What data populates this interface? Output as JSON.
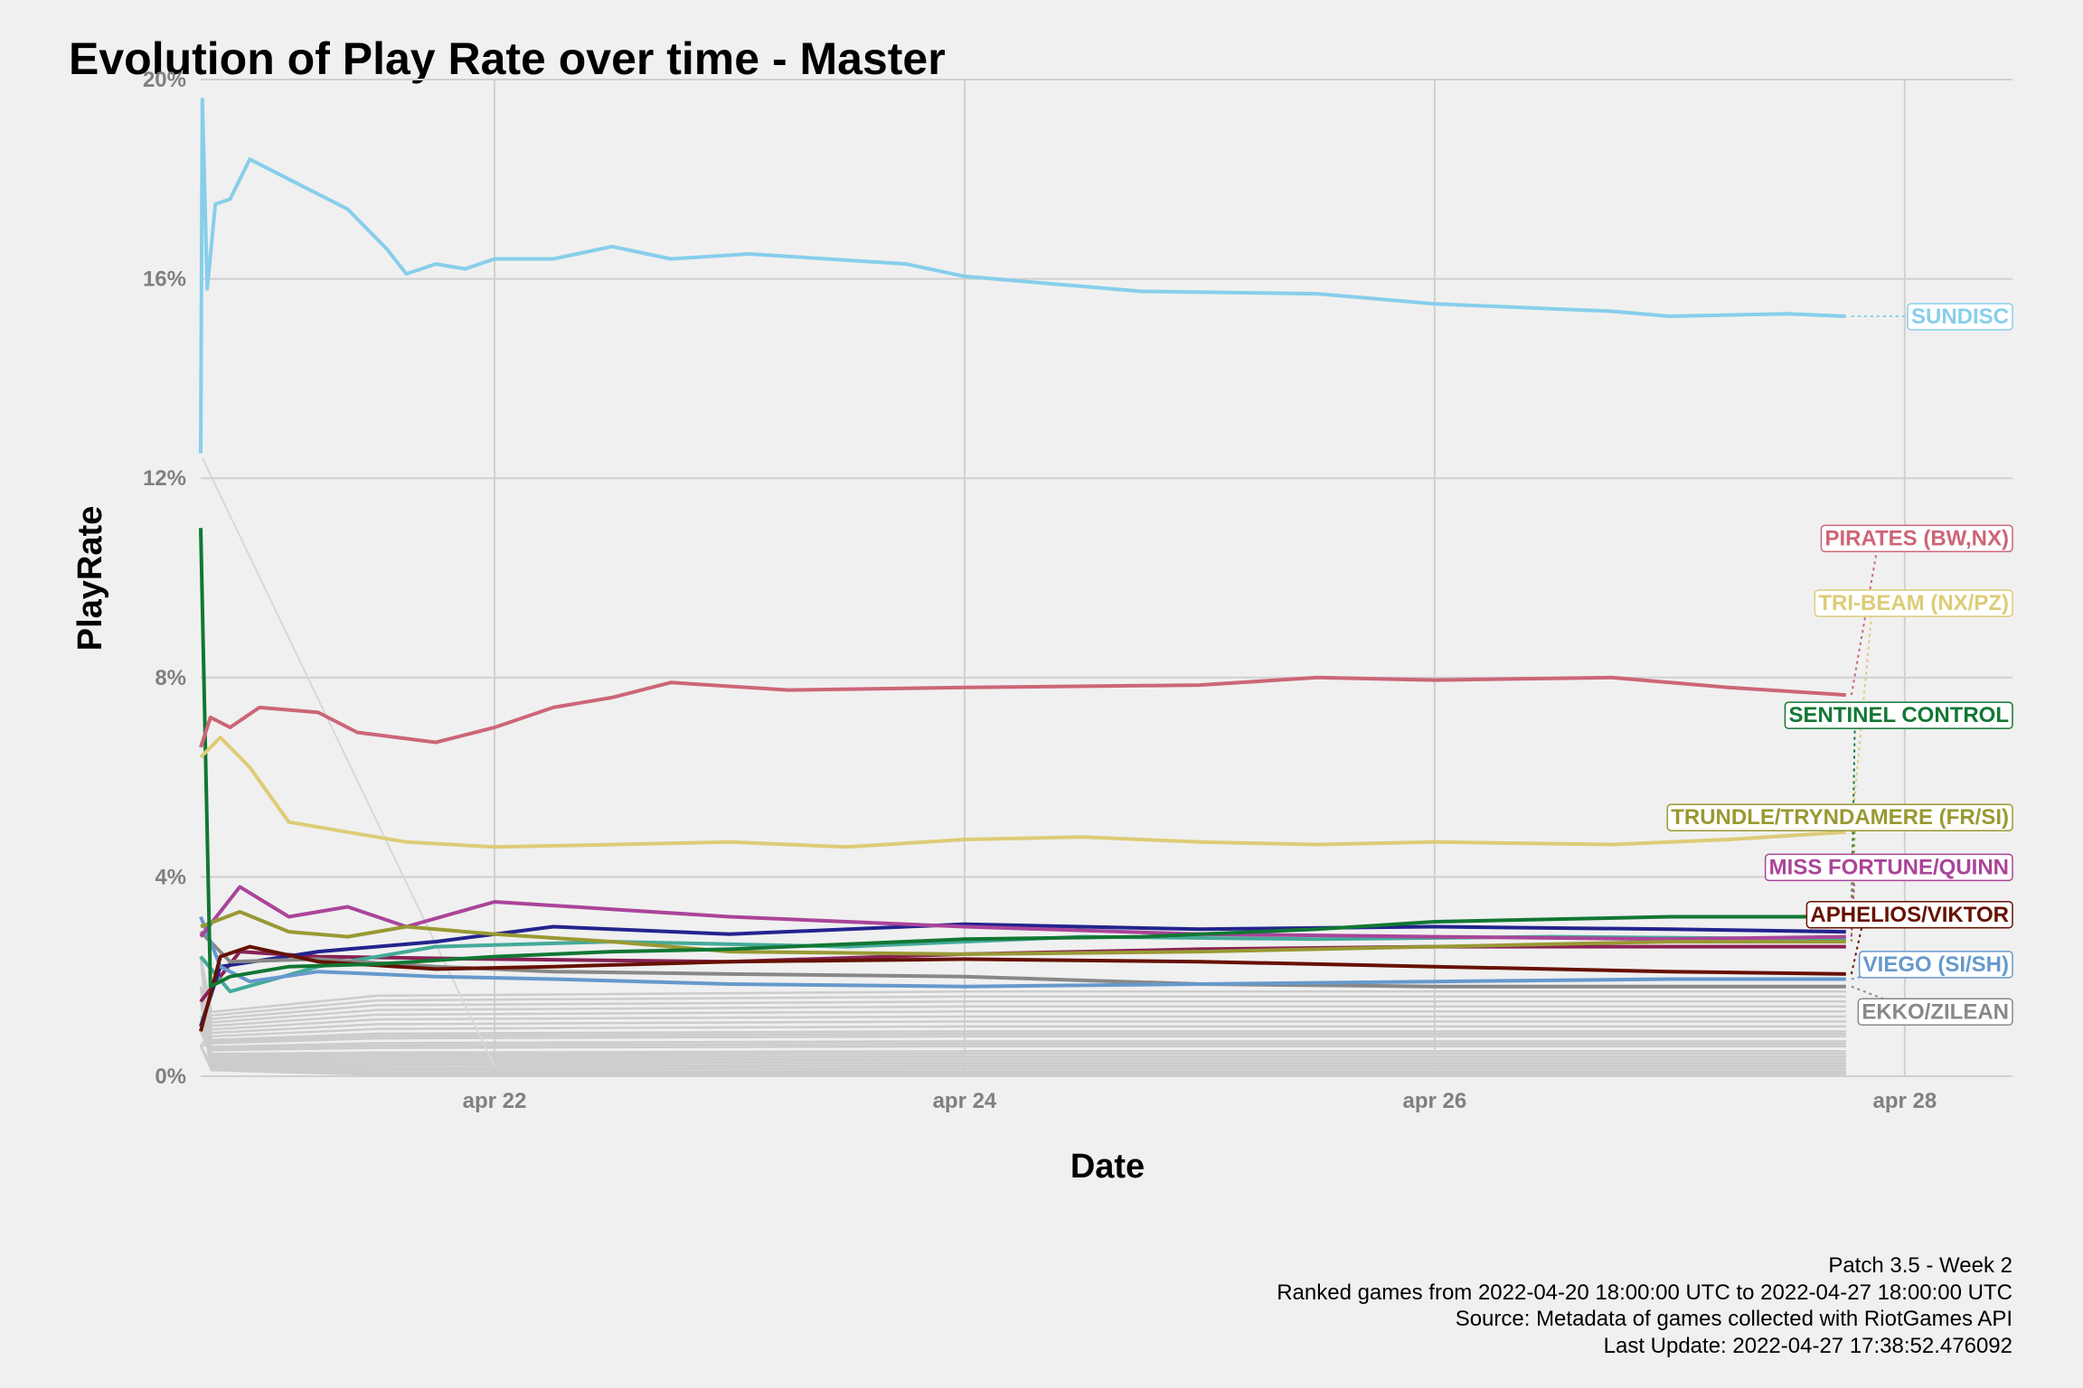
{
  "chart_data": {
    "type": "line",
    "title": "Evolution of Play Rate over time - Master",
    "xlabel": "Date",
    "ylabel": "PlayRate",
    "x_axis": {
      "range": [
        "2022-04-20T18:00",
        "2022-04-28T11:00"
      ],
      "ticks": [
        {
          "value": "2022-04-22",
          "label": "apr 22"
        },
        {
          "value": "2022-04-24",
          "label": "apr 24"
        },
        {
          "value": "2022-04-26",
          "label": "apr 26"
        },
        {
          "value": "2022-04-28",
          "label": "apr 28"
        }
      ]
    },
    "y_axis": {
      "range": [
        0,
        20
      ],
      "unit": "%",
      "ticks": [
        {
          "value": 0,
          "label": "0%"
        },
        {
          "value": 4,
          "label": "4%"
        },
        {
          "value": 8,
          "label": "8%"
        },
        {
          "value": 12,
          "label": "12%"
        },
        {
          "value": 16,
          "label": "16%"
        },
        {
          "value": 20,
          "label": "20%"
        }
      ]
    },
    "grid": true,
    "legend": "direct labels at right end of lines",
    "series": [
      {
        "name": "SUNDISC",
        "color": "#87ceeb",
        "points": [
          [
            "2022-04-20T18:00",
            12.5
          ],
          [
            "2022-04-20T18:10",
            19.6
          ],
          [
            "2022-04-20T18:40",
            15.8
          ],
          [
            "2022-04-20T19:30",
            17.5
          ],
          [
            "2022-04-20T21:00",
            17.6
          ],
          [
            "2022-04-20T23:00",
            18.4
          ],
          [
            "2022-04-21T03:00",
            18.0
          ],
          [
            "2022-04-21T09:00",
            17.4
          ],
          [
            "2022-04-21T13:00",
            16.6
          ],
          [
            "2022-04-21T15:00",
            16.1
          ],
          [
            "2022-04-21T18:00",
            16.3
          ],
          [
            "2022-04-21T21:00",
            16.2
          ],
          [
            "2022-04-22T00:00",
            16.4
          ],
          [
            "2022-04-22T06:00",
            16.4
          ],
          [
            "2022-04-22T12:00",
            16.65
          ],
          [
            "2022-04-22T18:00",
            16.4
          ],
          [
            "2022-04-23T02:00",
            16.5
          ],
          [
            "2022-04-23T10:00",
            16.4
          ],
          [
            "2022-04-23T18:00",
            16.3
          ],
          [
            "2022-04-24T00:00",
            16.05
          ],
          [
            "2022-04-24T06:00",
            15.95
          ],
          [
            "2022-04-24T12:00",
            15.85
          ],
          [
            "2022-04-24T18:00",
            15.75
          ],
          [
            "2022-04-25T12:00",
            15.7
          ],
          [
            "2022-04-26T00:00",
            15.5
          ],
          [
            "2022-04-26T12:00",
            15.4
          ],
          [
            "2022-04-26T18:00",
            15.35
          ],
          [
            "2022-04-27T00:00",
            15.25
          ],
          [
            "2022-04-27T12:00",
            15.3
          ],
          [
            "2022-04-27T18:00",
            15.25
          ]
        ]
      },
      {
        "name": "PIRATES (BW,NX)",
        "color": "#cc6677",
        "points": [
          [
            "2022-04-20T18:00",
            6.6
          ],
          [
            "2022-04-20T19:00",
            7.2
          ],
          [
            "2022-04-20T21:00",
            7.0
          ],
          [
            "2022-04-21T00:00",
            7.4
          ],
          [
            "2022-04-21T06:00",
            7.3
          ],
          [
            "2022-04-21T10:00",
            6.9
          ],
          [
            "2022-04-21T18:00",
            6.7
          ],
          [
            "2022-04-22T00:00",
            7.0
          ],
          [
            "2022-04-22T06:00",
            7.4
          ],
          [
            "2022-04-22T12:00",
            7.6
          ],
          [
            "2022-04-22T18:00",
            7.9
          ],
          [
            "2022-04-23T06:00",
            7.75
          ],
          [
            "2022-04-24T00:00",
            7.8
          ],
          [
            "2022-04-25T00:00",
            7.85
          ],
          [
            "2022-04-25T12:00",
            8.0
          ],
          [
            "2022-04-26T00:00",
            7.95
          ],
          [
            "2022-04-26T18:00",
            8.0
          ],
          [
            "2022-04-27T06:00",
            7.8
          ],
          [
            "2022-04-27T18:00",
            7.65
          ]
        ]
      },
      {
        "name": "TRI-BEAM (NX/PZ)",
        "color": "#ddcc77",
        "points": [
          [
            "2022-04-20T18:00",
            6.4
          ],
          [
            "2022-04-20T20:00",
            6.8
          ],
          [
            "2022-04-20T23:00",
            6.2
          ],
          [
            "2022-04-21T03:00",
            5.1
          ],
          [
            "2022-04-21T09:00",
            4.9
          ],
          [
            "2022-04-21T15:00",
            4.7
          ],
          [
            "2022-04-22T00:00",
            4.6
          ],
          [
            "2022-04-22T12:00",
            4.65
          ],
          [
            "2022-04-23T00:00",
            4.7
          ],
          [
            "2022-04-23T12:00",
            4.6
          ],
          [
            "2022-04-24T00:00",
            4.75
          ],
          [
            "2022-04-24T12:00",
            4.8
          ],
          [
            "2022-04-25T00:00",
            4.7
          ],
          [
            "2022-04-25T12:00",
            4.65
          ],
          [
            "2022-04-26T00:00",
            4.7
          ],
          [
            "2022-04-26T18:00",
            4.65
          ],
          [
            "2022-04-27T06:00",
            4.75
          ],
          [
            "2022-04-27T18:00",
            4.9
          ]
        ]
      },
      {
        "name": "SENTINEL CONTROL",
        "color": "#117733",
        "points": [
          [
            "2022-04-20T18:00",
            11.0
          ],
          [
            "2022-04-20T19:00",
            1.8
          ],
          [
            "2022-04-20T21:00",
            2.0
          ],
          [
            "2022-04-21T03:00",
            2.2
          ],
          [
            "2022-04-21T12:00",
            2.25
          ],
          [
            "2022-04-22T00:00",
            2.4
          ],
          [
            "2022-04-22T12:00",
            2.5
          ],
          [
            "2022-04-23T00:00",
            2.55
          ],
          [
            "2022-04-24T00:00",
            2.75
          ],
          [
            "2022-04-24T18:00",
            2.8
          ],
          [
            "2022-04-25T12:00",
            2.95
          ],
          [
            "2022-04-26T00:00",
            3.1
          ],
          [
            "2022-04-26T12:00",
            3.15
          ],
          [
            "2022-04-27T00:00",
            3.2
          ],
          [
            "2022-04-27T18:00",
            3.2
          ]
        ]
      },
      {
        "name": "TRUNDLE/TRYNDAMERE (FR/SI)",
        "color": "#999933",
        "points": [
          [
            "2022-04-20T18:00",
            3.0
          ],
          [
            "2022-04-20T22:00",
            3.3
          ],
          [
            "2022-04-21T03:00",
            2.9
          ],
          [
            "2022-04-21T09:00",
            2.8
          ],
          [
            "2022-04-21T15:00",
            3.0
          ],
          [
            "2022-04-22T00:00",
            2.85
          ],
          [
            "2022-04-22T12:00",
            2.7
          ],
          [
            "2022-04-23T00:00",
            2.5
          ],
          [
            "2022-04-24T00:00",
            2.45
          ],
          [
            "2022-04-25T00:00",
            2.5
          ],
          [
            "2022-04-26T00:00",
            2.6
          ],
          [
            "2022-04-27T00:00",
            2.7
          ],
          [
            "2022-04-27T18:00",
            2.7
          ]
        ]
      },
      {
        "name": "MISS FORTUNE/QUINN",
        "color": "#aa4499",
        "points": [
          [
            "2022-04-20T18:00",
            2.8
          ],
          [
            "2022-04-20T22:00",
            3.8
          ],
          [
            "2022-04-21T03:00",
            3.2
          ],
          [
            "2022-04-21T09:00",
            3.4
          ],
          [
            "2022-04-21T15:00",
            3.0
          ],
          [
            "2022-04-22T00:00",
            3.5
          ],
          [
            "2022-04-22T12:00",
            3.35
          ],
          [
            "2022-04-23T00:00",
            3.2
          ],
          [
            "2022-04-24T00:00",
            3.0
          ],
          [
            "2022-04-25T00:00",
            2.85
          ],
          [
            "2022-04-26T00:00",
            2.8
          ],
          [
            "2022-04-27T00:00",
            2.75
          ],
          [
            "2022-04-27T18:00",
            2.8
          ]
        ]
      },
      {
        "name": "APHELIOS/VIKTOR",
        "color": "#661100",
        "points": [
          [
            "2022-04-20T18:00",
            0.9
          ],
          [
            "2022-04-20T20:00",
            2.4
          ],
          [
            "2022-04-20T23:00",
            2.6
          ],
          [
            "2022-04-21T06:00",
            2.3
          ],
          [
            "2022-04-21T18:00",
            2.15
          ],
          [
            "2022-04-22T06:00",
            2.2
          ],
          [
            "2022-04-23T00:00",
            2.3
          ],
          [
            "2022-04-24T00:00",
            2.35
          ],
          [
            "2022-04-25T00:00",
            2.3
          ],
          [
            "2022-04-26T00:00",
            2.2
          ],
          [
            "2022-04-27T00:00",
            2.1
          ],
          [
            "2022-04-27T18:00",
            2.05
          ]
        ]
      },
      {
        "name": "VIEGO (SI/SH)",
        "color": "#6699cc",
        "points": [
          [
            "2022-04-20T18:00",
            3.2
          ],
          [
            "2022-04-20T20:00",
            2.2
          ],
          [
            "2022-04-20T23:00",
            1.9
          ],
          [
            "2022-04-21T06:00",
            2.1
          ],
          [
            "2022-04-21T18:00",
            2.0
          ],
          [
            "2022-04-22T06:00",
            1.95
          ],
          [
            "2022-04-23T00:00",
            1.85
          ],
          [
            "2022-04-24T00:00",
            1.8
          ],
          [
            "2022-04-25T00:00",
            1.85
          ],
          [
            "2022-04-26T00:00",
            1.9
          ],
          [
            "2022-04-27T00:00",
            1.95
          ],
          [
            "2022-04-27T18:00",
            1.95
          ]
        ]
      },
      {
        "name": "EKKO/ZILEAN",
        "color": "#888888",
        "points": [
          [
            "2022-04-20T18:00",
            2.9
          ],
          [
            "2022-04-20T21:00",
            2.3
          ],
          [
            "2022-04-21T06:00",
            2.35
          ],
          [
            "2022-04-21T18:00",
            2.2
          ],
          [
            "2022-04-22T06:00",
            2.1
          ],
          [
            "2022-04-23T00:00",
            2.05
          ],
          [
            "2022-04-24T00:00",
            2.0
          ],
          [
            "2022-04-25T00:00",
            1.85
          ],
          [
            "2022-04-26T00:00",
            1.8
          ],
          [
            "2022-04-27T00:00",
            1.8
          ],
          [
            "2022-04-27T18:00",
            1.8
          ]
        ]
      },
      {
        "color": "#23238e",
        "points": [
          [
            "2022-04-20T18:00",
            1.0
          ],
          [
            "2022-04-20T20:00",
            2.2
          ],
          [
            "2022-04-21T06:00",
            2.5
          ],
          [
            "2022-04-21T18:00",
            2.7
          ],
          [
            "2022-04-22T06:00",
            3.0
          ],
          [
            "2022-04-23T00:00",
            2.85
          ],
          [
            "2022-04-24T00:00",
            3.05
          ],
          [
            "2022-04-25T00:00",
            2.95
          ],
          [
            "2022-04-26T00:00",
            3.0
          ],
          [
            "2022-04-27T00:00",
            2.95
          ],
          [
            "2022-04-27T18:00",
            2.9
          ]
        ]
      },
      {
        "color": "#44aa99",
        "points": [
          [
            "2022-04-20T18:00",
            2.4
          ],
          [
            "2022-04-20T21:00",
            1.7
          ],
          [
            "2022-04-21T06:00",
            2.2
          ],
          [
            "2022-04-21T18:00",
            2.6
          ],
          [
            "2022-04-22T12:00",
            2.7
          ],
          [
            "2022-04-23T12:00",
            2.6
          ],
          [
            "2022-04-24T12:00",
            2.8
          ],
          [
            "2022-04-25T12:00",
            2.75
          ],
          [
            "2022-04-26T12:00",
            2.8
          ],
          [
            "2022-04-27T18:00",
            2.75
          ]
        ]
      },
      {
        "color": "#882255",
        "points": [
          [
            "2022-04-20T18:00",
            1.5
          ],
          [
            "2022-04-20T22:00",
            2.5
          ],
          [
            "2022-04-21T06:00",
            2.4
          ],
          [
            "2022-04-22T00:00",
            2.35
          ],
          [
            "2022-04-23T00:00",
            2.3
          ],
          [
            "2022-04-24T00:00",
            2.45
          ],
          [
            "2022-04-25T00:00",
            2.55
          ],
          [
            "2022-04-26T00:00",
            2.6
          ],
          [
            "2022-04-27T00:00",
            2.6
          ],
          [
            "2022-04-27T18:00",
            2.6
          ]
        ]
      }
    ],
    "background_series": {
      "color": "#cccccc",
      "final_values": [
        1.7,
        1.6,
        1.5,
        1.4,
        1.3,
        1.2,
        1.1,
        1.0,
        0.9,
        0.85,
        0.8,
        0.7,
        0.65,
        0.6,
        0.5,
        0.45,
        0.4,
        0.35,
        0.3,
        0.25,
        0.2,
        0.15,
        0.1,
        0.08,
        0.05,
        0.03
      ]
    }
  },
  "caption": {
    "line1": "Patch 3.5 - Week 2",
    "line2": "Ranked games from 2022-04-20 18:00:00 UTC to 2022-04-27 18:00:00 UTC",
    "line3": "Source: Metadata of games collected with RiotGames API",
    "line4": "Last Update: 2022-04-27 17:38:52.476092"
  }
}
